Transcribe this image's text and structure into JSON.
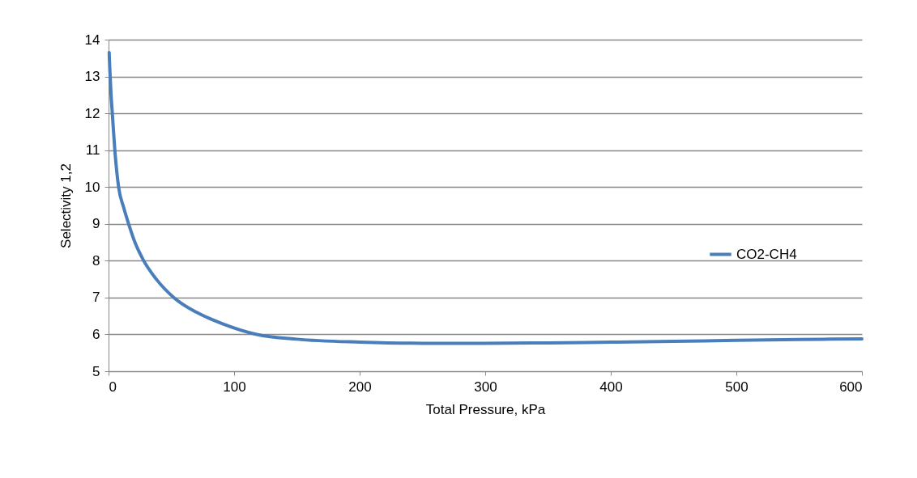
{
  "chart_data": {
    "type": "line",
    "xlabel": "Total Pressure, kPa",
    "ylabel": "Selectivity 1,2",
    "xlim": [
      0,
      600
    ],
    "xticks": [
      0,
      100,
      200,
      300,
      400,
      500,
      600
    ],
    "ylim": [
      5,
      14
    ],
    "yticks": [
      5,
      6,
      7,
      8,
      9,
      10,
      11,
      12,
      13,
      14
    ],
    "grid": "y",
    "legend": "right",
    "marker": "none",
    "line_style": "solid",
    "series": [
      {
        "name": "CO2-CH4",
        "color": "#4a7ebb",
        "x": [
          0.5,
          1,
          2,
          3,
          5,
          8,
          12,
          16,
          21,
          28,
          38,
          52,
          70,
          90,
          118,
          150,
          200,
          250,
          300,
          350,
          400,
          450,
          500,
          550,
          600
        ],
        "values": [
          13.65,
          13.2,
          12.5,
          12,
          11,
          10,
          9.45,
          9,
          8.5,
          8,
          7.5,
          7,
          6.6,
          6.3,
          6.0,
          5.87,
          5.79,
          5.76,
          5.76,
          5.77,
          5.79,
          5.81,
          5.84,
          5.86,
          5.88
        ]
      }
    ]
  }
}
